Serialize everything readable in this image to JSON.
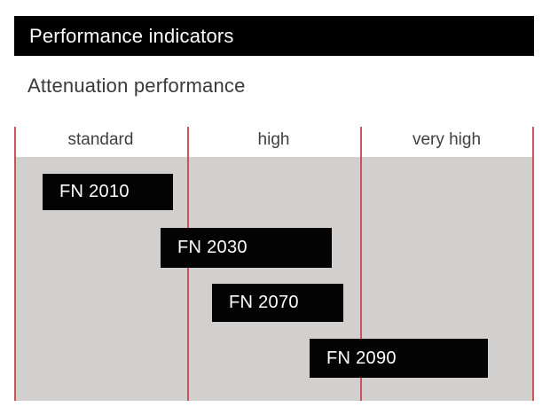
{
  "header": {
    "title": "Performance indicators",
    "subtitle": "Attenuation performance"
  },
  "chart_data": {
    "type": "bar",
    "variant": "horizontal-range-gantt",
    "title": "Attenuation performance",
    "categories": [
      "standard",
      "high",
      "very high"
    ],
    "x_axis": {
      "unit": "attenuation class (column units: 0 = left edge of standard, 3 = right edge of very high)",
      "range": [
        0,
        3
      ],
      "divider_positions": [
        0,
        1,
        2,
        3
      ]
    },
    "grid": "vertical red dividers between category columns, shaded plot background",
    "legend": "none",
    "bars": [
      {
        "label": "FN 2010",
        "row": 0,
        "span": [
          0.164,
          0.918
        ],
        "covers": [
          "standard"
        ]
      },
      {
        "label": "FN 2030",
        "row": 1,
        "span": [
          0.846,
          1.836
        ],
        "covers": [
          "standard",
          "high"
        ]
      },
      {
        "label": "FN 2070",
        "row": 2,
        "span": [
          1.144,
          1.903
        ],
        "covers": [
          "high"
        ]
      },
      {
        "label": "FN 2090",
        "row": 3,
        "span": [
          1.708,
          2.738
        ],
        "covers": [
          "high",
          "very high"
        ]
      }
    ]
  },
  "colors": {
    "title_bar_bg": "#000000",
    "title_text": "#ffffff",
    "subtitle_text": "#3a3a3a",
    "column_header_text": "#404040",
    "plot_bg": "#d1d0ce",
    "divider_line": "#c9545e",
    "bar_bg": "#030303",
    "bar_text": "#ffffff"
  }
}
